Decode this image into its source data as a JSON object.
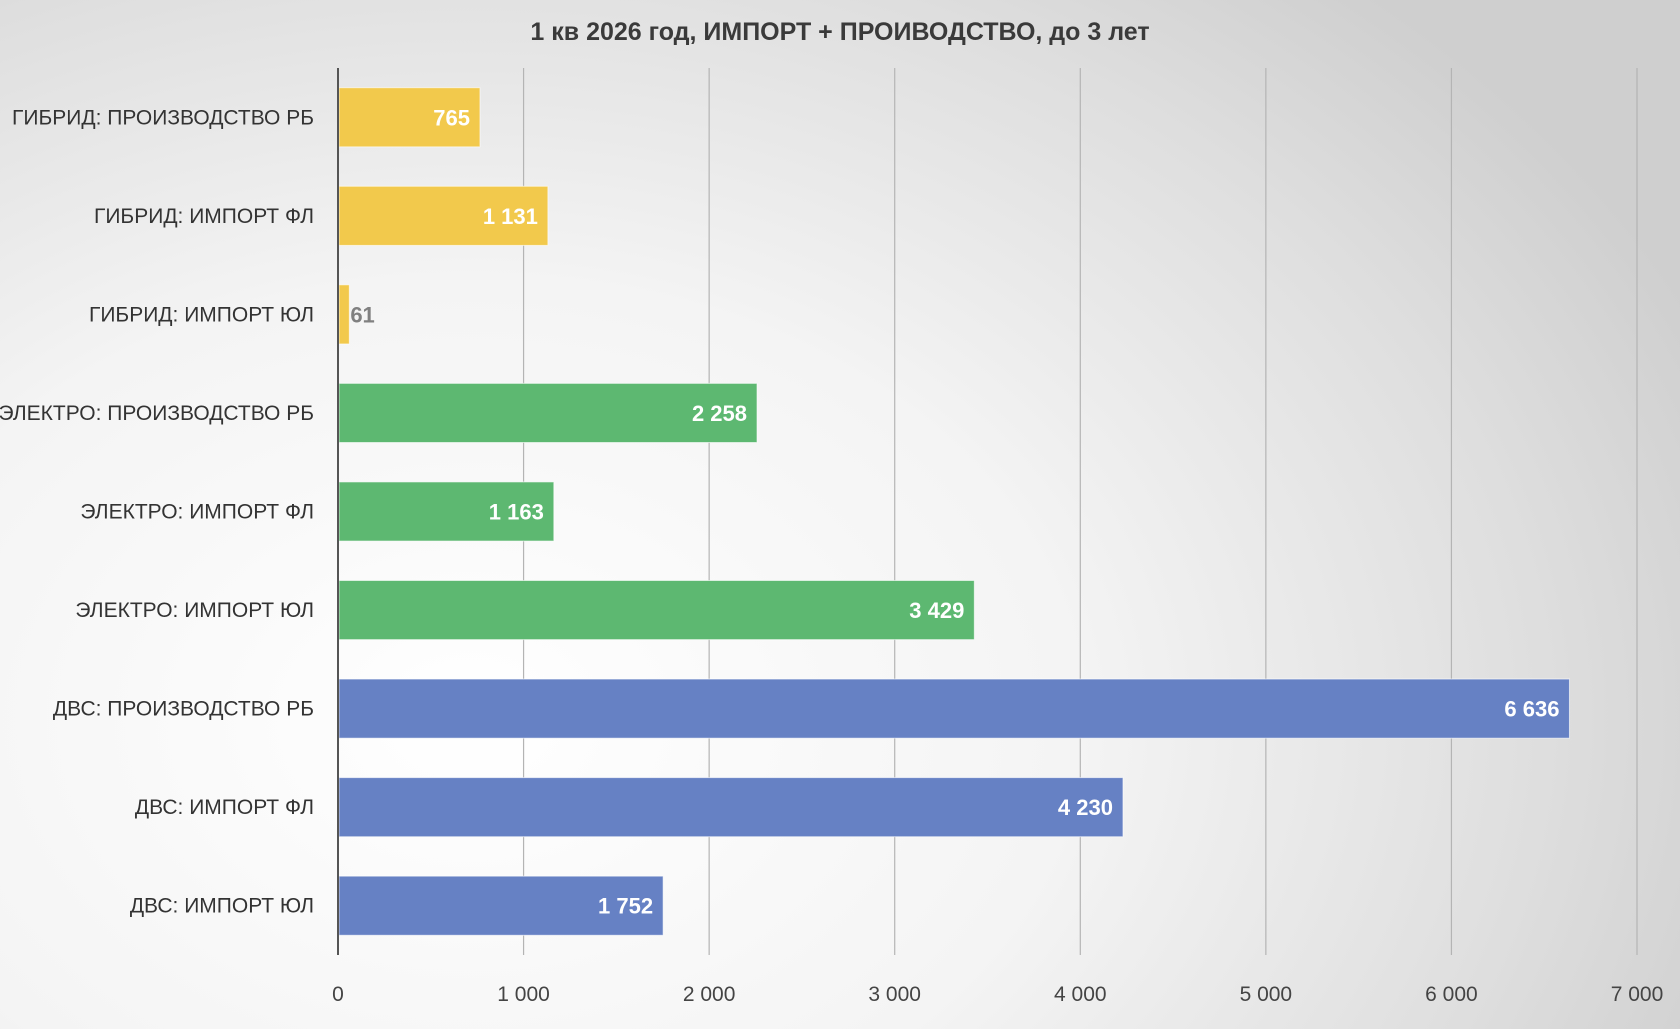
{
  "chart_data": {
    "type": "bar",
    "orientation": "horizontal",
    "title": "1 кв 2026 год, ИМПОРТ + ПРОИВОДСТВО, до 3 лет",
    "xlabel": "",
    "ylabel": "",
    "xlim": [
      0,
      7000
    ],
    "x_ticks": [
      0,
      1000,
      2000,
      3000,
      4000,
      5000,
      6000,
      7000
    ],
    "x_tick_labels": [
      "0",
      "1 000",
      "2 000",
      "3 000",
      "4 000",
      "5 000",
      "6 000",
      "7 000"
    ],
    "grid": true,
    "legend": "none",
    "categories": [
      "ГИБРИД: ПРОИЗВОДСТВО РБ",
      "ГИБРИД: ИМПОРТ ФЛ",
      "ГИБРИД: ИМПОРТ ЮЛ",
      "ЭЛЕКТРО: ПРОИЗВОДСТВО РБ",
      "ЭЛЕКТРО: ИМПОРТ ФЛ",
      "ЭЛЕКТРО: ИМПОРТ ЮЛ",
      "ДВС: ПРОИЗВОДСТВО РБ",
      "ДВС: ИМПОРТ ФЛ",
      "ДВС: ИМПОРТ ЮЛ"
    ],
    "values": [
      765,
      1131,
      61,
      2258,
      1163,
      3429,
      6636,
      4230,
      1752
    ],
    "value_labels": [
      "765",
      "1 131",
      "61",
      "2 258",
      "1 163",
      "3 429",
      "6 636",
      "4 230",
      "1 752"
    ],
    "colors": [
      "#F2C94C",
      "#F2C94C",
      "#F2C94C",
      "#5DB871",
      "#5DB871",
      "#5DB871",
      "#6681C4",
      "#6681C4",
      "#6681C4"
    ],
    "label_colors": [
      "#ffffff",
      "#ffffff",
      "#808080",
      "#ffffff",
      "#ffffff",
      "#ffffff",
      "#ffffff",
      "#ffffff",
      "#ffffff"
    ]
  }
}
